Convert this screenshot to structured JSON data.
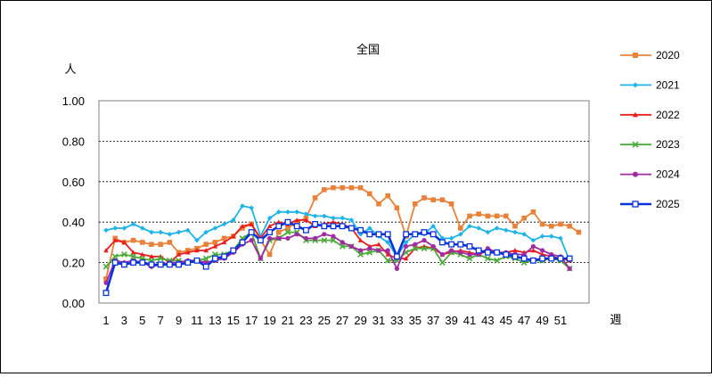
{
  "chart_data": {
    "type": "line",
    "title": "全国",
    "ylabel": "人",
    "xlabel": "週",
    "ylim": [
      0,
      1.0
    ],
    "yticks": [
      "0.00",
      "0.20",
      "0.40",
      "0.60",
      "0.80",
      "1.00"
    ],
    "yticks_values": [
      0,
      0.2,
      0.4,
      0.6,
      0.8,
      1.0
    ],
    "xlim": [
      1,
      52
    ],
    "xticks": [
      1,
      3,
      5,
      7,
      9,
      11,
      13,
      15,
      17,
      19,
      21,
      23,
      25,
      27,
      29,
      31,
      33,
      35,
      37,
      39,
      41,
      43,
      45,
      47,
      49,
      51
    ],
    "grid": "horizontal-dashed",
    "legend_position": "right",
    "series": [
      {
        "name": "2020",
        "color": "#E8823A",
        "marker": "square",
        "values": [
          0.12,
          0.32,
          0.3,
          0.31,
          0.3,
          0.29,
          0.29,
          0.3,
          0.25,
          0.26,
          0.27,
          0.29,
          0.3,
          0.32,
          0.33,
          0.37,
          0.39,
          0.31,
          0.24,
          0.35,
          0.37,
          0.4,
          0.42,
          0.52,
          0.56,
          0.57,
          0.57,
          0.57,
          0.57,
          0.54,
          0.49,
          0.53,
          0.47,
          0.33,
          0.49,
          0.52,
          0.51,
          0.51,
          0.49,
          0.37,
          0.43,
          0.44,
          0.43,
          0.43,
          0.43,
          0.38,
          0.42,
          0.45,
          0.39,
          0.38,
          0.39,
          0.38,
          0.35
        ]
      },
      {
        "name": "2021",
        "color": "#1EB4E8",
        "marker": "diamond",
        "values": [
          0.36,
          0.37,
          0.37,
          0.39,
          0.37,
          0.35,
          0.35,
          0.34,
          0.35,
          0.36,
          0.31,
          0.35,
          0.37,
          0.39,
          0.41,
          0.48,
          0.47,
          0.33,
          0.42,
          0.45,
          0.45,
          0.45,
          0.44,
          0.43,
          0.43,
          0.42,
          0.42,
          0.41,
          0.34,
          0.37,
          0.33,
          0.3,
          0.23,
          0.3,
          0.34,
          0.34,
          0.38,
          0.32,
          0.32,
          0.34,
          0.38,
          0.37,
          0.35,
          0.37,
          0.36,
          0.35,
          0.34,
          0.31,
          0.33,
          0.33,
          0.32,
          0.21
        ]
      },
      {
        "name": "2022",
        "color": "#E81E1E",
        "marker": "triangle",
        "values": [
          0.26,
          0.31,
          0.3,
          0.25,
          0.24,
          0.23,
          0.23,
          0.2,
          0.24,
          0.25,
          0.26,
          0.26,
          0.28,
          0.3,
          0.33,
          0.38,
          0.39,
          0.32,
          0.38,
          0.4,
          0.39,
          0.41,
          0.41,
          0.38,
          0.39,
          0.4,
          0.39,
          0.37,
          0.31,
          0.28,
          0.29,
          0.24,
          0.22,
          0.22,
          0.27,
          0.28,
          0.27,
          0.24,
          0.25,
          0.26,
          0.25,
          0.24,
          0.26,
          0.25,
          0.25,
          0.26,
          0.25,
          0.26,
          0.24,
          0.23,
          0.22,
          0.21
        ]
      },
      {
        "name": "2023",
        "color": "#4AAA3A",
        "marker": "x",
        "values": [
          0.18,
          0.23,
          0.24,
          0.23,
          0.22,
          0.21,
          0.22,
          0.21,
          0.21,
          0.2,
          0.21,
          0.22,
          0.24,
          0.24,
          0.26,
          0.32,
          0.35,
          0.22,
          0.31,
          0.32,
          0.35,
          0.35,
          0.31,
          0.31,
          0.31,
          0.31,
          0.28,
          0.28,
          0.24,
          0.25,
          0.26,
          0.21,
          0.21,
          0.25,
          0.27,
          0.27,
          0.27,
          0.2,
          0.25,
          0.24,
          0.22,
          0.24,
          0.22,
          0.21,
          0.23,
          0.22,
          0.2,
          0.21,
          0.21,
          0.22,
          0.21,
          0.17
        ]
      },
      {
        "name": "2024",
        "color": "#A22AA2",
        "marker": "circle",
        "values": [
          0.1,
          0.21,
          0.2,
          0.21,
          0.2,
          0.18,
          0.19,
          0.2,
          0.2,
          0.21,
          0.21,
          0.2,
          0.21,
          0.22,
          0.25,
          0.29,
          0.31,
          0.22,
          0.32,
          0.32,
          0.32,
          0.34,
          0.32,
          0.32,
          0.34,
          0.33,
          0.3,
          0.28,
          0.26,
          0.27,
          0.26,
          0.26,
          0.17,
          0.28,
          0.29,
          0.31,
          0.28,
          0.24,
          0.26,
          0.25,
          0.24,
          0.24,
          0.27,
          0.25,
          0.25,
          0.24,
          0.24,
          0.28,
          0.26,
          0.24,
          0.23,
          0.17
        ]
      },
      {
        "name": "2025",
        "color": "#0A32DC",
        "marker": "open-square",
        "values": [
          0.05,
          0.2,
          0.19,
          0.2,
          0.2,
          0.19,
          0.19,
          0.19,
          0.19,
          0.2,
          0.21,
          0.18,
          0.22,
          0.23,
          0.26,
          0.3,
          0.35,
          0.31,
          0.35,
          0.38,
          0.4,
          0.38,
          0.36,
          0.39,
          0.38,
          0.38,
          0.38,
          0.37,
          0.36,
          0.34,
          0.34,
          0.34,
          0.23,
          0.34,
          0.34,
          0.35,
          0.34,
          0.3,
          0.29,
          0.29,
          0.28,
          0.26,
          0.25,
          0.25,
          0.24,
          0.23,
          0.22,
          0.21,
          0.22,
          0.22,
          0.22,
          0.22
        ]
      }
    ]
  }
}
